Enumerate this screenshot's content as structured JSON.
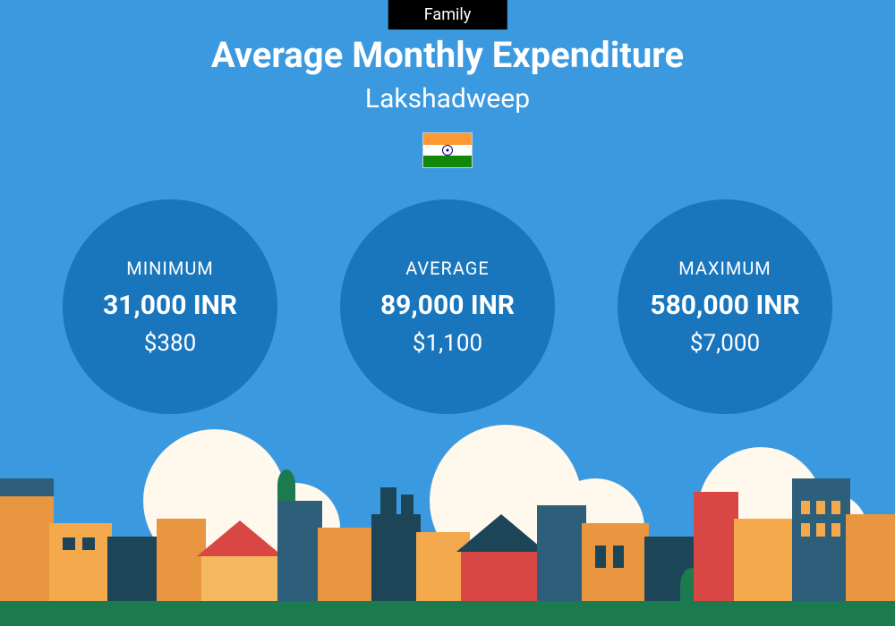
{
  "tab_label": "Family",
  "title": "Average Monthly Expenditure",
  "location": "Lakshadweep",
  "colors": {
    "background": "#3b99e0",
    "circle_bg": "#1976bd",
    "ground": "#1c7a4f",
    "tab_bg": "#000000",
    "text": "#ffffff"
  },
  "circles": [
    {
      "label": "MINIMUM",
      "value": "31,000 INR",
      "usd": "$380"
    },
    {
      "label": "AVERAGE",
      "value": "89,000 INR",
      "usd": "$1,100"
    },
    {
      "label": "MAXIMUM",
      "value": "580,000 INR",
      "usd": "$7,000"
    }
  ],
  "flag": {
    "top_color": "#ff9933",
    "mid_color": "#ffffff",
    "bot_color": "#138808",
    "chakra_color": "#000080"
  }
}
